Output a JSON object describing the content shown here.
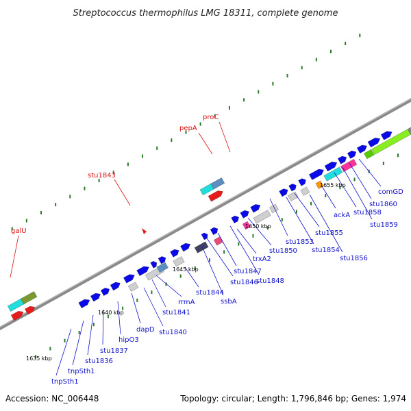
{
  "title": "Streptococcus thermophilus LMG 18311, complete genome",
  "accession": "Accession: NC_006448",
  "topology": "Topology: circular; Length: 1,796,846 bp; Genes: 1,974",
  "colors": {
    "backbone": "#7f7f7f",
    "cds": "#0a0ae8",
    "label_blue": "#1010cc",
    "label_red": "#dd1111",
    "tick": "#2a7a2a",
    "red_gene": "#e81a1a"
  },
  "kbp_ticks": [
    "1635 kbp",
    "1640 kbp",
    "1645 kbp",
    "1650 kbp",
    "1655 kbp"
  ],
  "gene_labels": [
    {
      "text": "galU",
      "color": "red"
    },
    {
      "text": "stu1843",
      "color": "red"
    },
    {
      "text": "pepA",
      "color": "red"
    },
    {
      "text": "proC",
      "color": "red"
    },
    {
      "text": "tnpSth1",
      "color": "blue"
    },
    {
      "text": "tnpSth1",
      "color": "blue"
    },
    {
      "text": "stu1836",
      "color": "blue"
    },
    {
      "text": "stu1837",
      "color": "blue"
    },
    {
      "text": "hipO3",
      "color": "blue"
    },
    {
      "text": "dapD",
      "color": "blue"
    },
    {
      "text": "stu1840",
      "color": "blue"
    },
    {
      "text": "stu1841",
      "color": "blue"
    },
    {
      "text": "rrmA",
      "color": "blue"
    },
    {
      "text": "stu1844",
      "color": "blue"
    },
    {
      "text": "ssbA",
      "color": "blue"
    },
    {
      "text": "stu1846",
      "color": "blue"
    },
    {
      "text": "stu1847",
      "color": "blue"
    },
    {
      "text": "stu1848",
      "color": "blue"
    },
    {
      "text": "trxA2",
      "color": "blue"
    },
    {
      "text": "stu1850",
      "color": "blue"
    },
    {
      "text": "stu1853",
      "color": "blue"
    },
    {
      "text": "stu1854",
      "color": "blue"
    },
    {
      "text": "stu1855",
      "color": "blue"
    },
    {
      "text": "stu1856",
      "color": "blue"
    },
    {
      "text": "ackA",
      "color": "blue"
    },
    {
      "text": "stu1858",
      "color": "blue"
    },
    {
      "text": "stu1859",
      "color": "blue"
    },
    {
      "text": "stu1860",
      "color": "blue"
    },
    {
      "text": "comGD",
      "color": "blue"
    }
  ]
}
